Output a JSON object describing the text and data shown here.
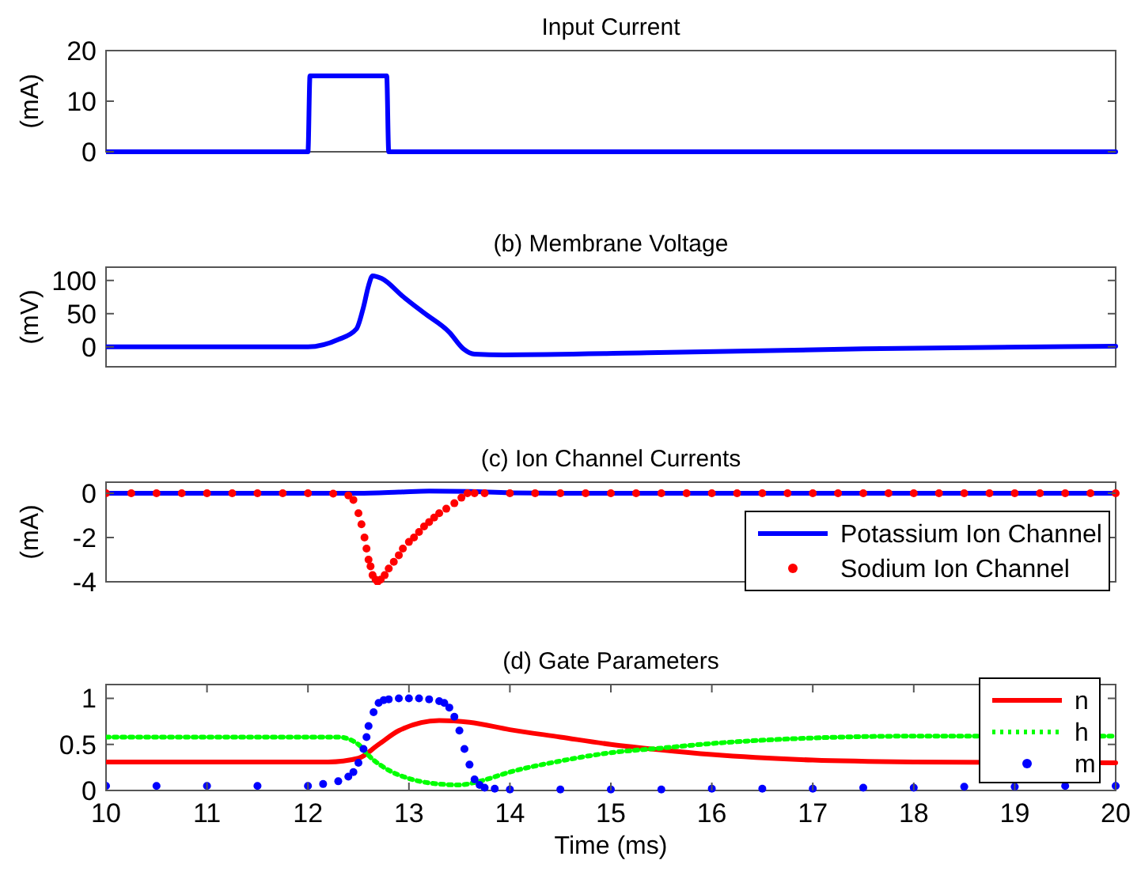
{
  "chart_data": [
    {
      "type": "line",
      "title": "Input Current",
      "ylabel": "(mA)",
      "xlim": [
        10,
        20
      ],
      "ylim": [
        0,
        20
      ],
      "yticks": [
        0,
        10,
        20
      ],
      "tick_labels": "y",
      "series": [
        {
          "color": "#0000ff",
          "x": [
            10,
            12,
            12.02,
            12.78,
            12.8,
            20
          ],
          "values": [
            0,
            0,
            15,
            15,
            0,
            0
          ]
        }
      ]
    },
    {
      "type": "line",
      "title": "(b) Membrane Voltage",
      "ylabel": "(mV)",
      "xlim": [
        10,
        20
      ],
      "ylim": [
        -30,
        120
      ],
      "yticks": [
        0,
        50,
        100
      ],
      "tick_labels": "y",
      "series": [
        {
          "color": "#0000ff",
          "x": [
            10,
            12,
            12.3,
            12.48,
            12.55,
            12.6,
            12.64,
            12.73,
            12.94,
            13.15,
            13.4,
            13.54,
            13.65,
            13.94,
            15.36,
            17.5,
            20
          ],
          "values": [
            0,
            0,
            11,
            27,
            60,
            92,
            107,
            103,
            76,
            51,
            22,
            -3,
            -11,
            -12,
            -9,
            -3,
            1
          ]
        }
      ]
    },
    {
      "type": "line",
      "title": "(c) Ion Channel Currents",
      "ylabel": "(mA)",
      "xlim": [
        10,
        20
      ],
      "ylim": [
        -4,
        0.5
      ],
      "yticks": [
        -4,
        -2,
        0
      ],
      "tick_labels": "y",
      "legend": "right",
      "series": [
        {
          "name": "Potassium Ion Channel",
          "color": "#0000ff",
          "x": [
            10,
            12.5,
            12.9,
            13.2,
            13.6,
            14,
            14.5,
            20
          ],
          "values": [
            0,
            0,
            0.05,
            0.1,
            0.08,
            0.02,
            0,
            0
          ]
        },
        {
          "name": "Sodium Ion Channel",
          "type": "scatter",
          "marker": "circle",
          "color": "#ff0000",
          "x": [
            10,
            10.25,
            10.5,
            10.75,
            11,
            11.25,
            11.5,
            11.75,
            12,
            12.25,
            12.4,
            12.45,
            12.5,
            12.53,
            12.56,
            12.58,
            12.6,
            12.62,
            12.64,
            12.67,
            12.69,
            12.72,
            12.76,
            12.8,
            12.85,
            12.9,
            12.94,
            13,
            13.05,
            13.1,
            13.15,
            13.2,
            13.25,
            13.3,
            13.37,
            13.45,
            13.52,
            13.58,
            13.65,
            13.75,
            14,
            14.25,
            14.5,
            14.75,
            15,
            15.25,
            15.5,
            15.75,
            16,
            16.25,
            16.5,
            16.75,
            17,
            17.25,
            17.5,
            17.75,
            18,
            18.25,
            18.5,
            18.75,
            19,
            19.25,
            19.5,
            19.75,
            20
          ],
          "values": [
            0,
            0,
            0,
            0,
            0,
            0,
            0,
            0,
            0,
            -0.02,
            -0.1,
            -0.3,
            -0.9,
            -1.4,
            -2,
            -2.5,
            -3,
            -3.3,
            -3.7,
            -3.9,
            -4,
            -3.9,
            -3.7,
            -3.4,
            -3.1,
            -2.8,
            -2.5,
            -2.2,
            -2,
            -1.75,
            -1.5,
            -1.3,
            -1.1,
            -0.9,
            -0.7,
            -0.45,
            -0.2,
            0,
            0,
            0,
            0,
            0,
            0,
            0,
            0,
            0,
            0,
            0,
            0,
            0,
            0,
            0,
            0,
            0,
            0,
            0,
            0,
            0,
            0,
            0,
            0,
            0,
            0,
            0,
            0
          ]
        }
      ]
    },
    {
      "type": "line",
      "title": "(d) Gate Parameters",
      "xlabel": "Time (ms)",
      "xlim": [
        10,
        20
      ],
      "ylim": [
        0,
        1.15
      ],
      "xticks": [
        10,
        11,
        12,
        13,
        14,
        15,
        16,
        17,
        18,
        19,
        20
      ],
      "yticks": [
        0,
        0.5,
        1
      ],
      "legend": "top right",
      "series": [
        {
          "name": "n",
          "color": "#ff0000",
          "line_style": "solid",
          "x": [
            10,
            12.2,
            12.5,
            12.7,
            12.9,
            13.3,
            13.6,
            14,
            14.5,
            15,
            15.5,
            16,
            17,
            18,
            20
          ],
          "values": [
            0.31,
            0.31,
            0.35,
            0.5,
            0.65,
            0.76,
            0.74,
            0.66,
            0.58,
            0.5,
            0.44,
            0.39,
            0.33,
            0.31,
            0.3
          ]
        },
        {
          "name": "h",
          "color": "#00ff00",
          "line_style": "dotted",
          "x": [
            10,
            12.3,
            12.5,
            12.6,
            12.8,
            13,
            13.3,
            13.5,
            13.7,
            14,
            14.5,
            15,
            15.5,
            16,
            17,
            18,
            20
          ],
          "values": [
            0.58,
            0.58,
            0.5,
            0.38,
            0.22,
            0.13,
            0.07,
            0.06,
            0.1,
            0.2,
            0.32,
            0.41,
            0.46,
            0.51,
            0.57,
            0.59,
            0.59
          ]
        },
        {
          "name": "m",
          "type": "scatter",
          "marker": "circle",
          "color": "#0000ff",
          "x": [
            10,
            10.5,
            11,
            11.5,
            12,
            12.15,
            12.3,
            12.4,
            12.45,
            12.5,
            12.55,
            12.58,
            12.6,
            12.65,
            12.7,
            12.75,
            12.8,
            12.9,
            13,
            13.1,
            13.2,
            13.3,
            13.35,
            13.4,
            13.45,
            13.5,
            13.55,
            13.6,
            13.65,
            13.7,
            13.75,
            13.85,
            14,
            14.5,
            15,
            15.5,
            16,
            16.5,
            17,
            17.5,
            18,
            18.5,
            19,
            19.5,
            20
          ],
          "values": [
            0.05,
            0.05,
            0.05,
            0.05,
            0.05,
            0.07,
            0.1,
            0.15,
            0.2,
            0.3,
            0.45,
            0.58,
            0.7,
            0.85,
            0.95,
            0.98,
            0.99,
            1,
            1,
            1,
            0.99,
            0.97,
            0.95,
            0.9,
            0.8,
            0.65,
            0.45,
            0.28,
            0.12,
            0.06,
            0.03,
            0.02,
            0.01,
            0.01,
            0.01,
            0.01,
            0.02,
            0.02,
            0.02,
            0.03,
            0.03,
            0.04,
            0.04,
            0.05,
            0.05
          ]
        }
      ]
    }
  ]
}
